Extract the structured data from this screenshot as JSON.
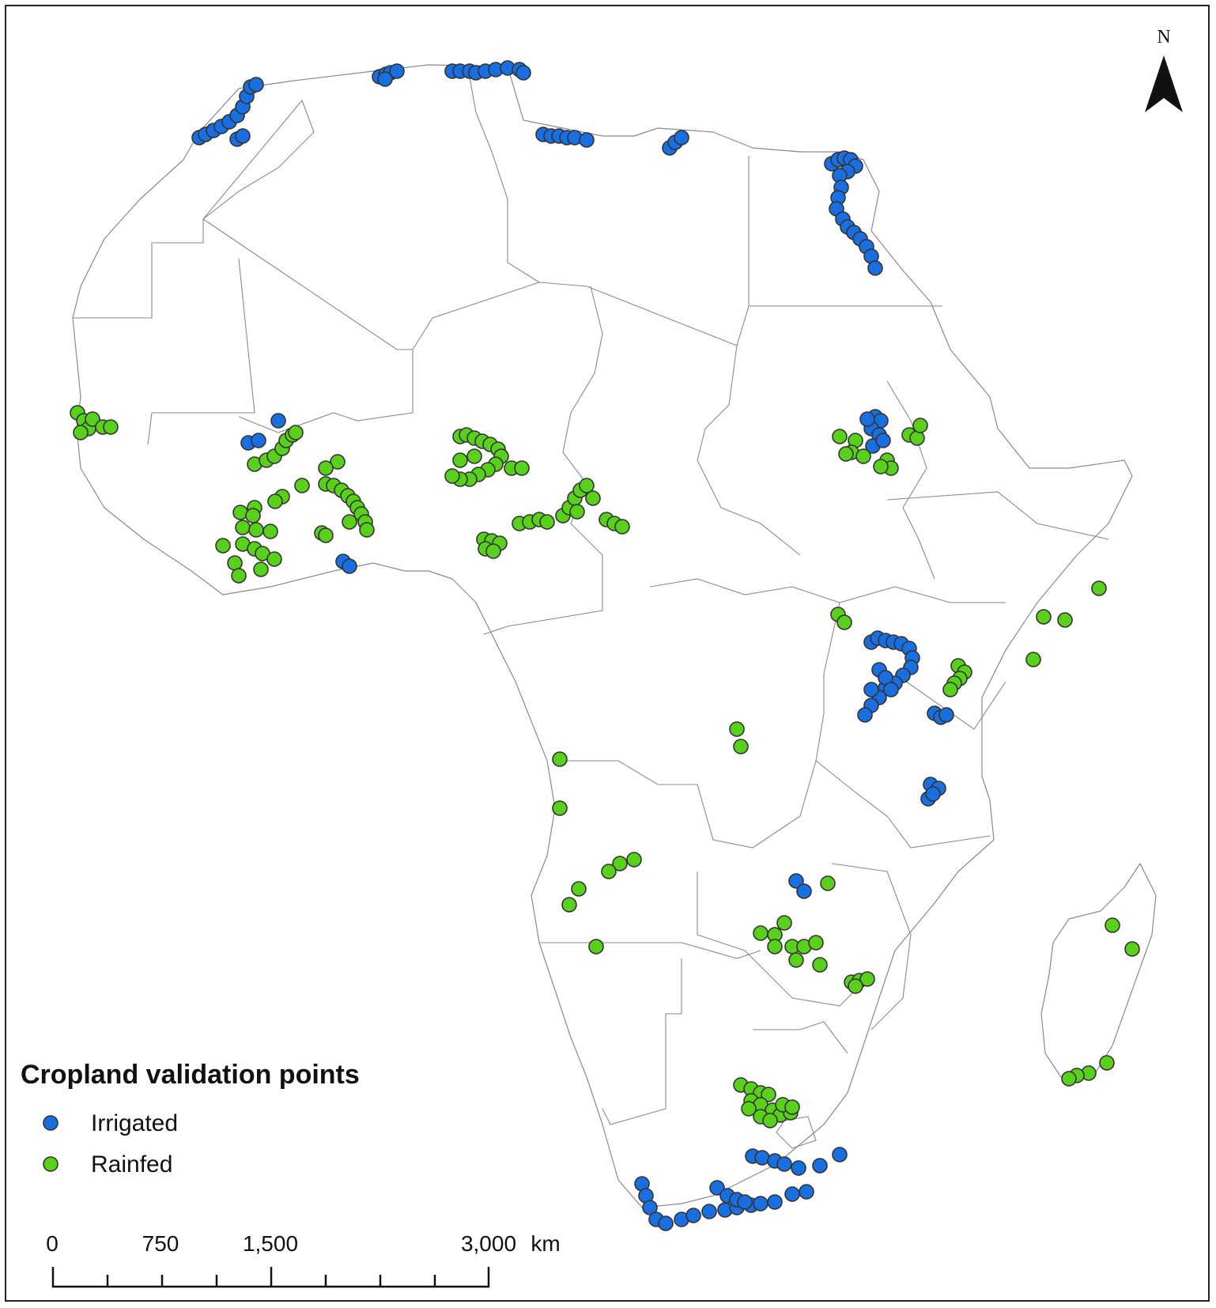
{
  "legend": {
    "title": "Cropland validation points",
    "items": [
      {
        "label": "Irrigated",
        "color": "#1a6fe0"
      },
      {
        "label": "Rainfed",
        "color": "#59d11c"
      }
    ]
  },
  "scale_bar": {
    "labels": [
      "0",
      "750",
      "1,500",
      "3,000"
    ],
    "unit": "km"
  },
  "north_arrow": {
    "label": "N"
  },
  "colors": {
    "irrigated": "#1a6fe0",
    "rainfed": "#59d11c",
    "outline": "#333333"
  }
}
